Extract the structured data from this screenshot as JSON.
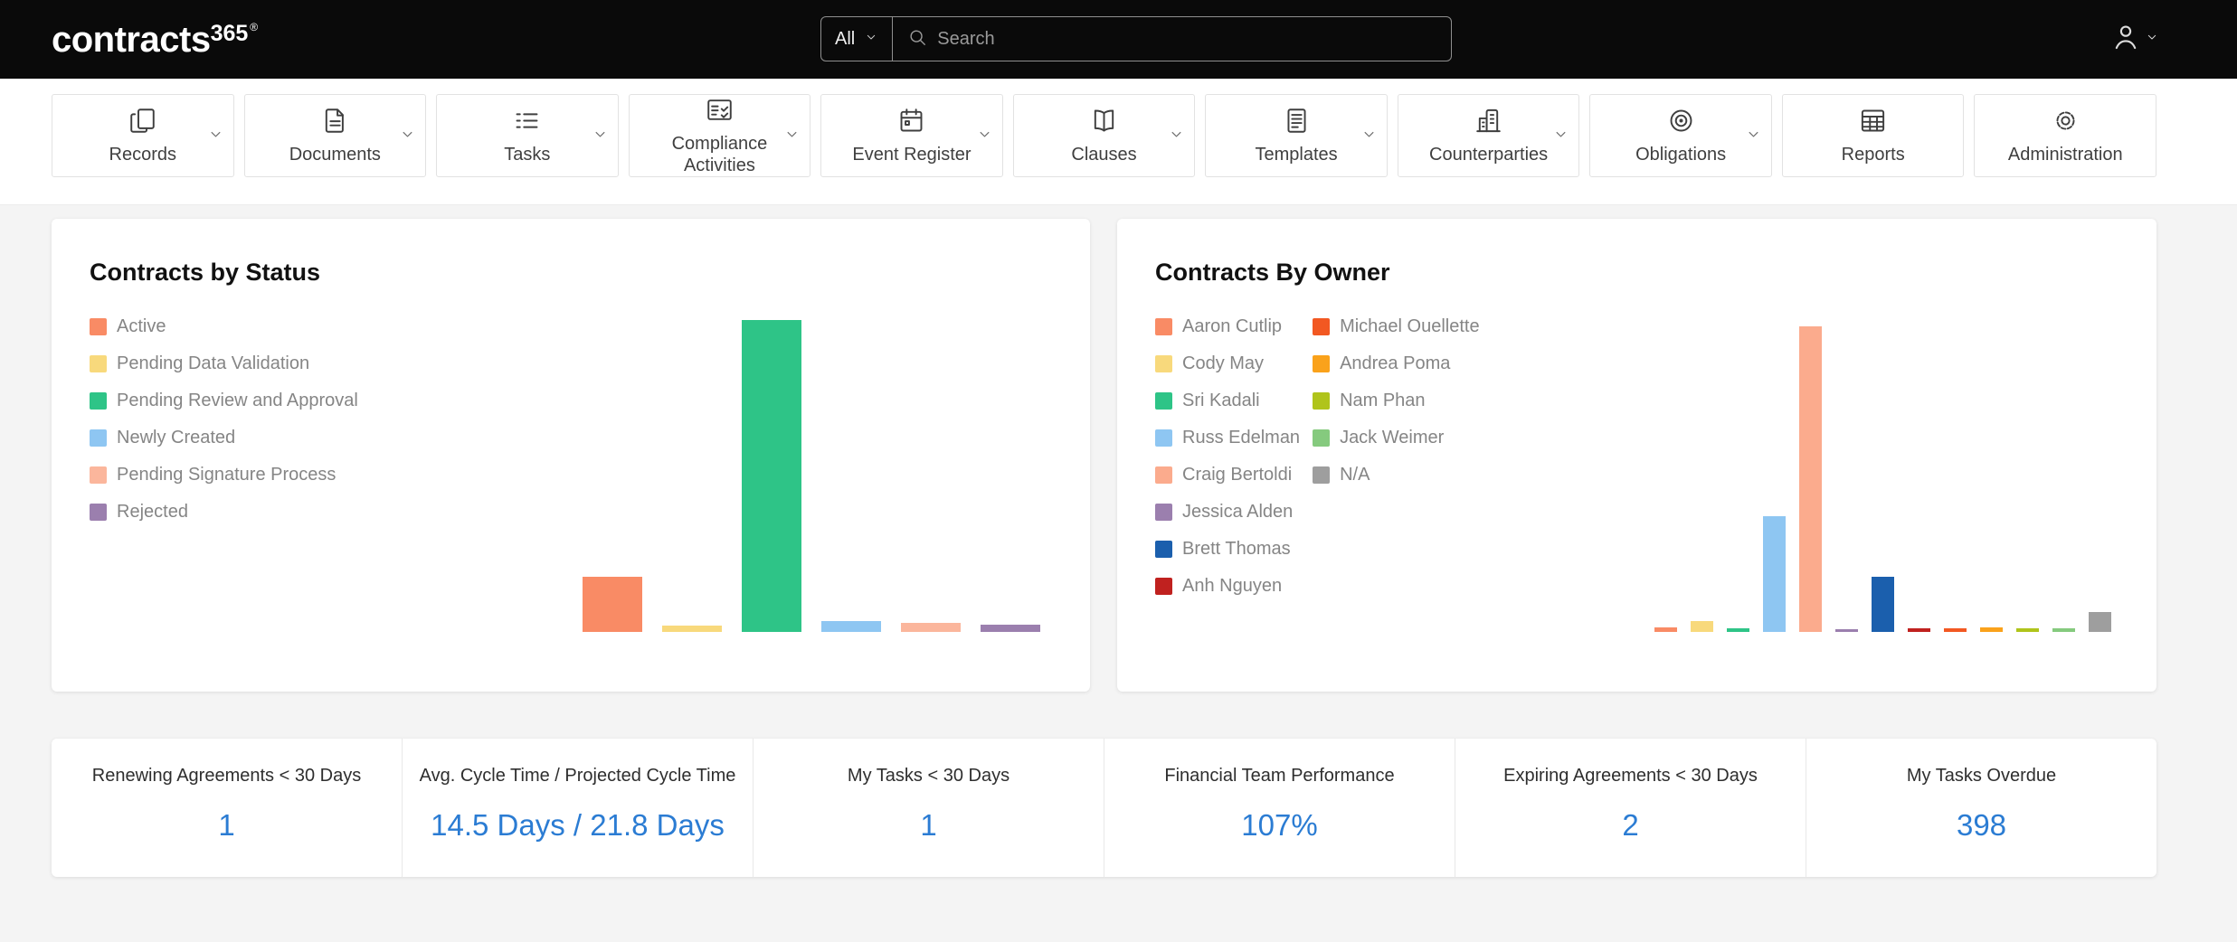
{
  "topbar": {
    "logo_text": "contracts",
    "logo_sup": "365",
    "logo_mark": "®",
    "search_scope": "All",
    "search_placeholder": "Search",
    "icons": [
      "search-icon",
      "user-icon",
      "chevron-down-icon"
    ]
  },
  "nav": {
    "items": [
      {
        "id": "records",
        "label": "Records",
        "icon": "records-icon",
        "has_menu": true
      },
      {
        "id": "documents",
        "label": "Documents",
        "icon": "documents-icon",
        "has_menu": true
      },
      {
        "id": "tasks",
        "label": "Tasks",
        "icon": "tasks-icon",
        "has_menu": true
      },
      {
        "id": "compliance-activities",
        "label": "Compliance Activities",
        "icon": "compliance-icon",
        "has_menu": true
      },
      {
        "id": "event-register",
        "label": "Event Register",
        "icon": "event-register-icon",
        "has_menu": true
      },
      {
        "id": "clauses",
        "label": "Clauses",
        "icon": "clauses-icon",
        "has_menu": true
      },
      {
        "id": "templates",
        "label": "Templates",
        "icon": "templates-icon",
        "has_menu": true
      },
      {
        "id": "counterparties",
        "label": "Counterparties",
        "icon": "counterparties-icon",
        "has_menu": true
      },
      {
        "id": "obligations",
        "label": "Obligations",
        "icon": "obligations-icon",
        "has_menu": true
      },
      {
        "id": "reports",
        "label": "Reports",
        "icon": "reports-icon",
        "has_menu": false
      },
      {
        "id": "administration",
        "label": "Administration",
        "icon": "administration-icon",
        "has_menu": false
      }
    ]
  },
  "chart_data": [
    {
      "type": "bar",
      "title": "Contracts by Status",
      "categories": [
        "Active",
        "Pending Data Validation",
        "Pending Review and Approval",
        "Newly Created",
        "Pending Signature Process",
        "Rejected"
      ],
      "values": [
        44,
        5,
        250,
        9,
        7,
        6
      ],
      "colors": [
        "#f98b65",
        "#f8d97c",
        "#2ec487",
        "#8ec6f2",
        "#fbb69c",
        "#9b7fae"
      ],
      "legend_rows": 6,
      "legend_position": "left",
      "grid": false,
      "axis_labels_shown": false
    },
    {
      "type": "bar",
      "title": "Contracts By Owner",
      "categories": [
        "Aaron Cutlip",
        "Cody May",
        "Sri Kadali",
        "Russ Edelman",
        "Craig Bertoldi",
        "Jessica Alden",
        "Brett Thomas",
        "Anh Nguyen",
        "Michael Ouellette",
        "Andrea Poma",
        "Nam Phan",
        "Jack Weimer",
        "N/A"
      ],
      "values": [
        4,
        9,
        3,
        95,
        250,
        2,
        45,
        3,
        3,
        4,
        3,
        3,
        16
      ],
      "colors": [
        "#f98b65",
        "#f8d97c",
        "#2ec487",
        "#8ec6f2",
        "#fbab8d",
        "#9b7fae",
        "#1b5fad",
        "#c0211f",
        "#f25822",
        "#faa21b",
        "#b0c41b",
        "#85ca7e",
        "#9e9e9e"
      ],
      "legend_rows": 8,
      "legend_position": "left",
      "grid": false,
      "axis_labels_shown": false
    }
  ],
  "kpis": [
    {
      "label": "Renewing Agreements < 30 Days",
      "value": "1"
    },
    {
      "label": "Avg. Cycle Time / Projected Cycle Time",
      "value": "14.5 Days / 21.8 Days"
    },
    {
      "label": "My Tasks < 30 Days",
      "value": "1"
    },
    {
      "label": "Financial Team Performance",
      "value": "107%"
    },
    {
      "label": "Expiring Agreements < 30 Days",
      "value": "2"
    },
    {
      "label": "My Tasks Overdue",
      "value": "398"
    }
  ],
  "colors": {
    "topbar_bg": "#0a0a0a",
    "page_bg": "#f4f4f4",
    "kpi_value": "#2b7cd3",
    "card_bg": "#ffffff"
  }
}
